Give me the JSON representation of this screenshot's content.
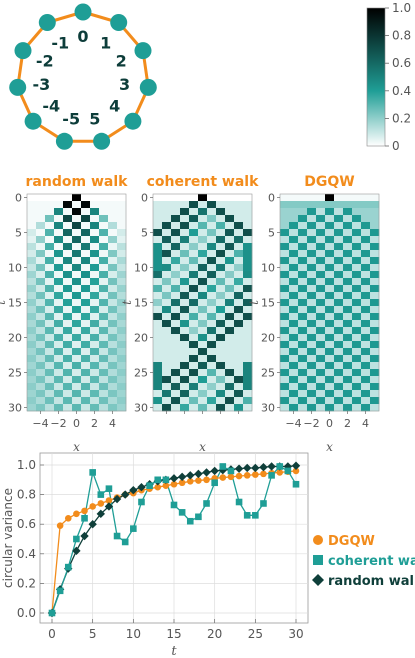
{
  "ring": {
    "labels": [
      "0",
      "1",
      "2",
      "3",
      "4",
      "5",
      "-5",
      "-4",
      "-3",
      "-2",
      "-1"
    ],
    "node_color": "#1f9e96",
    "edge_color": "#f28c1c",
    "label_color": "#0d3d3a"
  },
  "colorbar": {
    "ticks": [
      "1.0",
      "0.8",
      "0.6",
      "0.4",
      "0.2",
      "0"
    ],
    "tick_values": [
      1.0,
      0.8,
      0.6,
      0.4,
      0.2,
      0
    ],
    "color_low": "#ffffff",
    "color_mid": "#1f9e96",
    "color_high": "#000000"
  },
  "heatmaps": [
    {
      "title": "random walk",
      "model": "random"
    },
    {
      "title": "coherent walk",
      "model": "coherent"
    },
    {
      "title": "DGQW",
      "model": "dgqw"
    }
  ],
  "heatmap_axes": {
    "xlabel": "x",
    "ylabel": "t",
    "ytick_labels": [
      "0",
      "5",
      "10",
      "15",
      "20",
      "25",
      "30"
    ],
    "ytick_values": [
      0,
      5,
      10,
      15,
      20,
      25,
      30
    ],
    "xtick_labels": [
      "−4",
      "−2",
      "0",
      "2",
      "4"
    ],
    "xtick_values": [
      -4,
      -2,
      0,
      2,
      4
    ],
    "title_color": "#f28c1c"
  },
  "chart_data": {
    "type": "line",
    "xlabel": "t",
    "ylabel": "circular variance",
    "xlim": [
      0,
      30
    ],
    "ylim": [
      0,
      1.0
    ],
    "xtick_labels": [
      "0",
      "5",
      "10",
      "15",
      "20",
      "25",
      "30"
    ],
    "xtick_values": [
      0,
      5,
      10,
      15,
      20,
      25,
      30
    ],
    "ytick_labels": [
      "0.0",
      "0.2",
      "0.4",
      "0.6",
      "0.8",
      "1.0"
    ],
    "ytick_values": [
      0,
      0.2,
      0.4,
      0.6,
      0.8,
      1.0
    ],
    "grid": true,
    "legend": "right",
    "x": [
      0,
      1,
      2,
      3,
      4,
      5,
      6,
      7,
      8,
      9,
      10,
      11,
      12,
      13,
      14,
      15,
      16,
      17,
      18,
      19,
      20,
      21,
      22,
      23,
      24,
      25,
      26,
      27,
      28,
      29,
      30
    ],
    "series": [
      {
        "name": "DGQW",
        "color": "#f28c1c",
        "marker": "circle",
        "values": [
          0.0,
          0.59,
          0.64,
          0.67,
          0.69,
          0.72,
          0.74,
          0.76,
          0.78,
          0.8,
          0.81,
          0.83,
          0.84,
          0.85,
          0.86,
          0.87,
          0.88,
          0.89,
          0.895,
          0.9,
          0.91,
          0.915,
          0.92,
          0.925,
          0.93,
          0.935,
          0.94,
          0.945,
          0.95,
          0.955,
          0.96
        ]
      },
      {
        "name": "coherent walk",
        "color": "#1f9e96",
        "marker": "square",
        "values": [
          0.0,
          0.15,
          0.31,
          0.5,
          0.64,
          0.95,
          0.8,
          0.84,
          0.52,
          0.48,
          0.57,
          0.75,
          0.86,
          0.9,
          0.9,
          0.73,
          0.68,
          0.62,
          0.65,
          0.74,
          0.88,
          0.99,
          0.96,
          0.75,
          0.66,
          0.66,
          0.74,
          0.93,
          0.99,
          0.96,
          0.87
        ]
      },
      {
        "name": "random walk",
        "color": "#0f3f3a",
        "marker": "diamond",
        "values": [
          0.0,
          0.16,
          0.3,
          0.42,
          0.52,
          0.6,
          0.67,
          0.72,
          0.77,
          0.8,
          0.83,
          0.85,
          0.87,
          0.89,
          0.9,
          0.91,
          0.92,
          0.93,
          0.94,
          0.95,
          0.96,
          0.965,
          0.97,
          0.975,
          0.98,
          0.98,
          0.985,
          0.99,
          0.99,
          0.99,
          0.995
        ]
      }
    ]
  }
}
